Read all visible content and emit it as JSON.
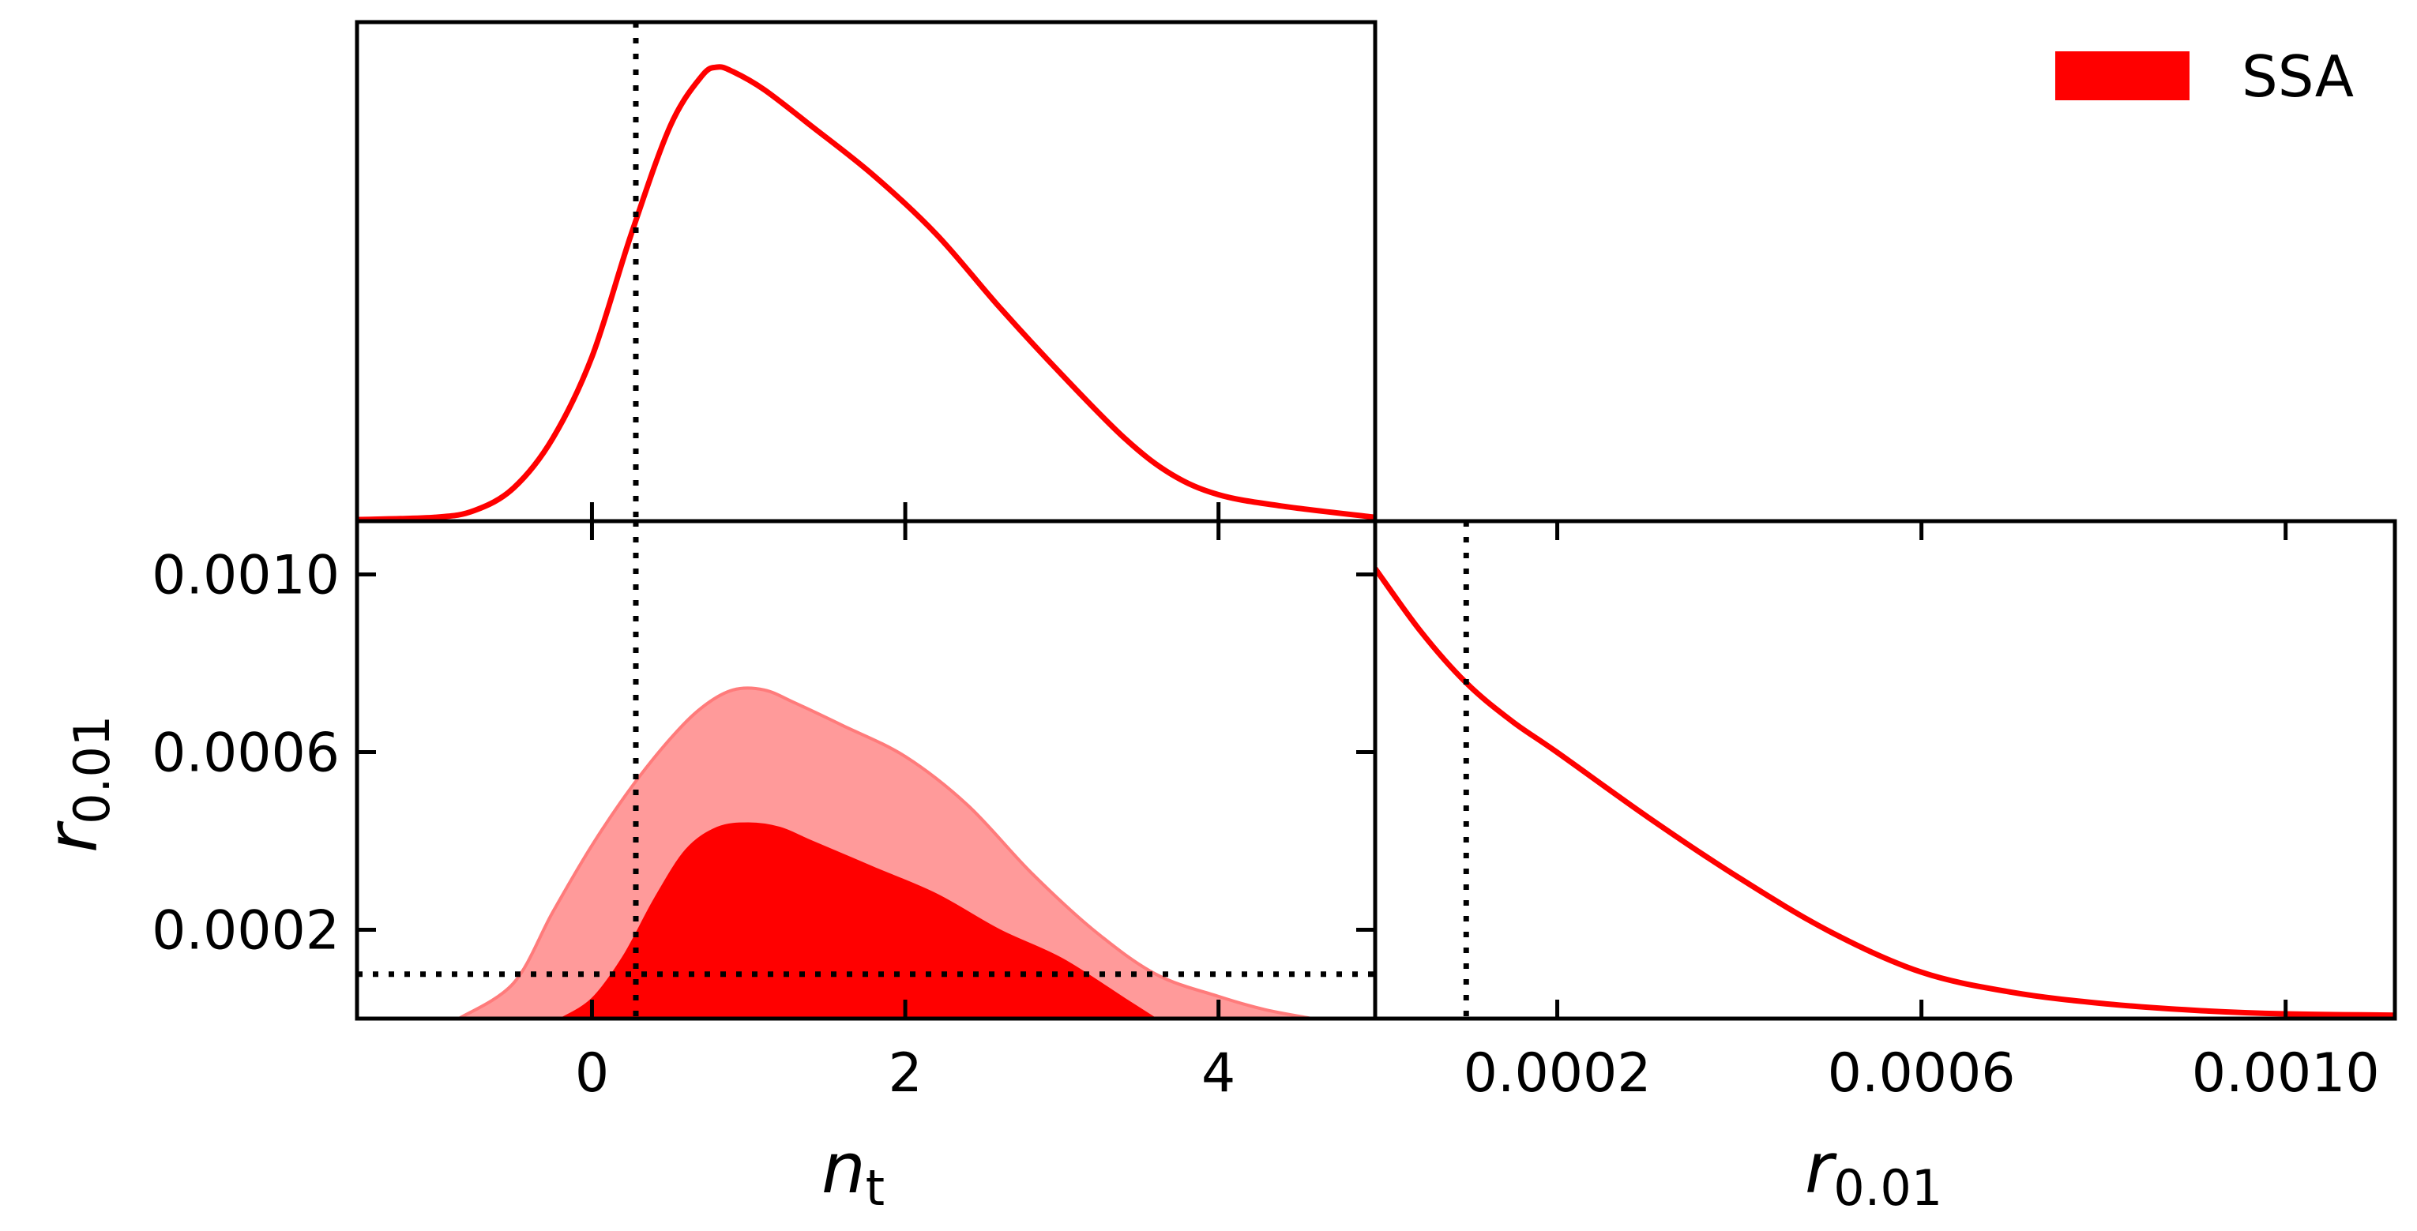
{
  "chart_data": {
    "type": "area",
    "description_kind": "triangle-corner-plot",
    "legend": {
      "position": "top-right",
      "entries": [
        {
          "name": "SSA",
          "color": "#ff0000"
        }
      ]
    },
    "colors": {
      "main": "#ff0000",
      "outer_contour": "#ff9a9a",
      "marker_line": "#000000"
    },
    "marker": {
      "n_t": 0.28,
      "r_0_01": 0.0001
    },
    "parameters": {
      "n_t": {
        "label": "n",
        "subscript": "t",
        "range": [
          -1.5,
          5.0
        ],
        "ticks": [
          0,
          2,
          4
        ],
        "tick_labels": [
          "0",
          "2",
          "4"
        ]
      },
      "r_0_01": {
        "label": "r",
        "subscript": "0.01",
        "range": [
          0.0,
          0.00112
        ],
        "ticks": [
          0.0002,
          0.0006,
          0.001
        ],
        "tick_labels": [
          "0.0002",
          "0.0006",
          "0.0010"
        ]
      }
    },
    "marginal_n_t": {
      "x": [
        -1.5,
        -1.0,
        -0.75,
        -0.5,
        -0.25,
        0.0,
        0.25,
        0.5,
        0.7,
        0.8,
        0.9,
        1.1,
        1.4,
        1.8,
        2.2,
        2.6,
        3.0,
        3.4,
        3.7,
        4.0,
        4.4,
        5.0
      ],
      "density": [
        0.0,
        0.005,
        0.02,
        0.07,
        0.18,
        0.36,
        0.63,
        0.87,
        0.98,
        1.0,
        0.99,
        0.95,
        0.87,
        0.76,
        0.63,
        0.47,
        0.32,
        0.18,
        0.1,
        0.055,
        0.03,
        0.005
      ]
    },
    "marginal_r_0_01": {
      "x": [
        0.0,
        5e-05,
        0.0001,
        0.00015,
        0.0002,
        0.0003,
        0.0004,
        0.0005,
        0.0006,
        0.0007,
        0.0008,
        0.0009,
        0.001,
        0.00112
      ],
      "density": [
        1.0,
        0.86,
        0.745,
        0.66,
        0.59,
        0.445,
        0.31,
        0.19,
        0.1,
        0.055,
        0.03,
        0.015,
        0.007,
        0.004
      ]
    },
    "contour_68": {
      "n_t": [
        -0.2,
        0.0,
        0.2,
        0.4,
        0.6,
        0.8,
        1.0,
        1.2,
        1.4,
        1.8,
        2.2,
        2.6,
        3.0,
        3.4,
        3.6
      ],
      "r_upper": [
        0.0,
        4.5e-05,
        0.00014,
        0.00027,
        0.00038,
        0.00043,
        0.00044,
        0.00043,
        0.0004,
        0.00034,
        0.00028,
        0.0002,
        0.000135,
        4.5e-05,
        0.0
      ]
    },
    "contour_95": {
      "n_t": [
        -0.85,
        -0.5,
        -0.25,
        0.0,
        0.25,
        0.5,
        0.7,
        0.9,
        1.1,
        1.3,
        1.6,
        2.0,
        2.4,
        2.8,
        3.2,
        3.6,
        4.0,
        4.3,
        4.6
      ],
      "r_upper": [
        0.0,
        8e-05,
        0.00024,
        0.00039,
        0.00052,
        0.00063,
        0.0007,
        0.00074,
        0.00074,
        0.00071,
        0.00066,
        0.00059,
        0.00048,
        0.00033,
        0.0002,
        0.0001,
        5e-05,
        2e-05,
        0.0
      ]
    }
  }
}
